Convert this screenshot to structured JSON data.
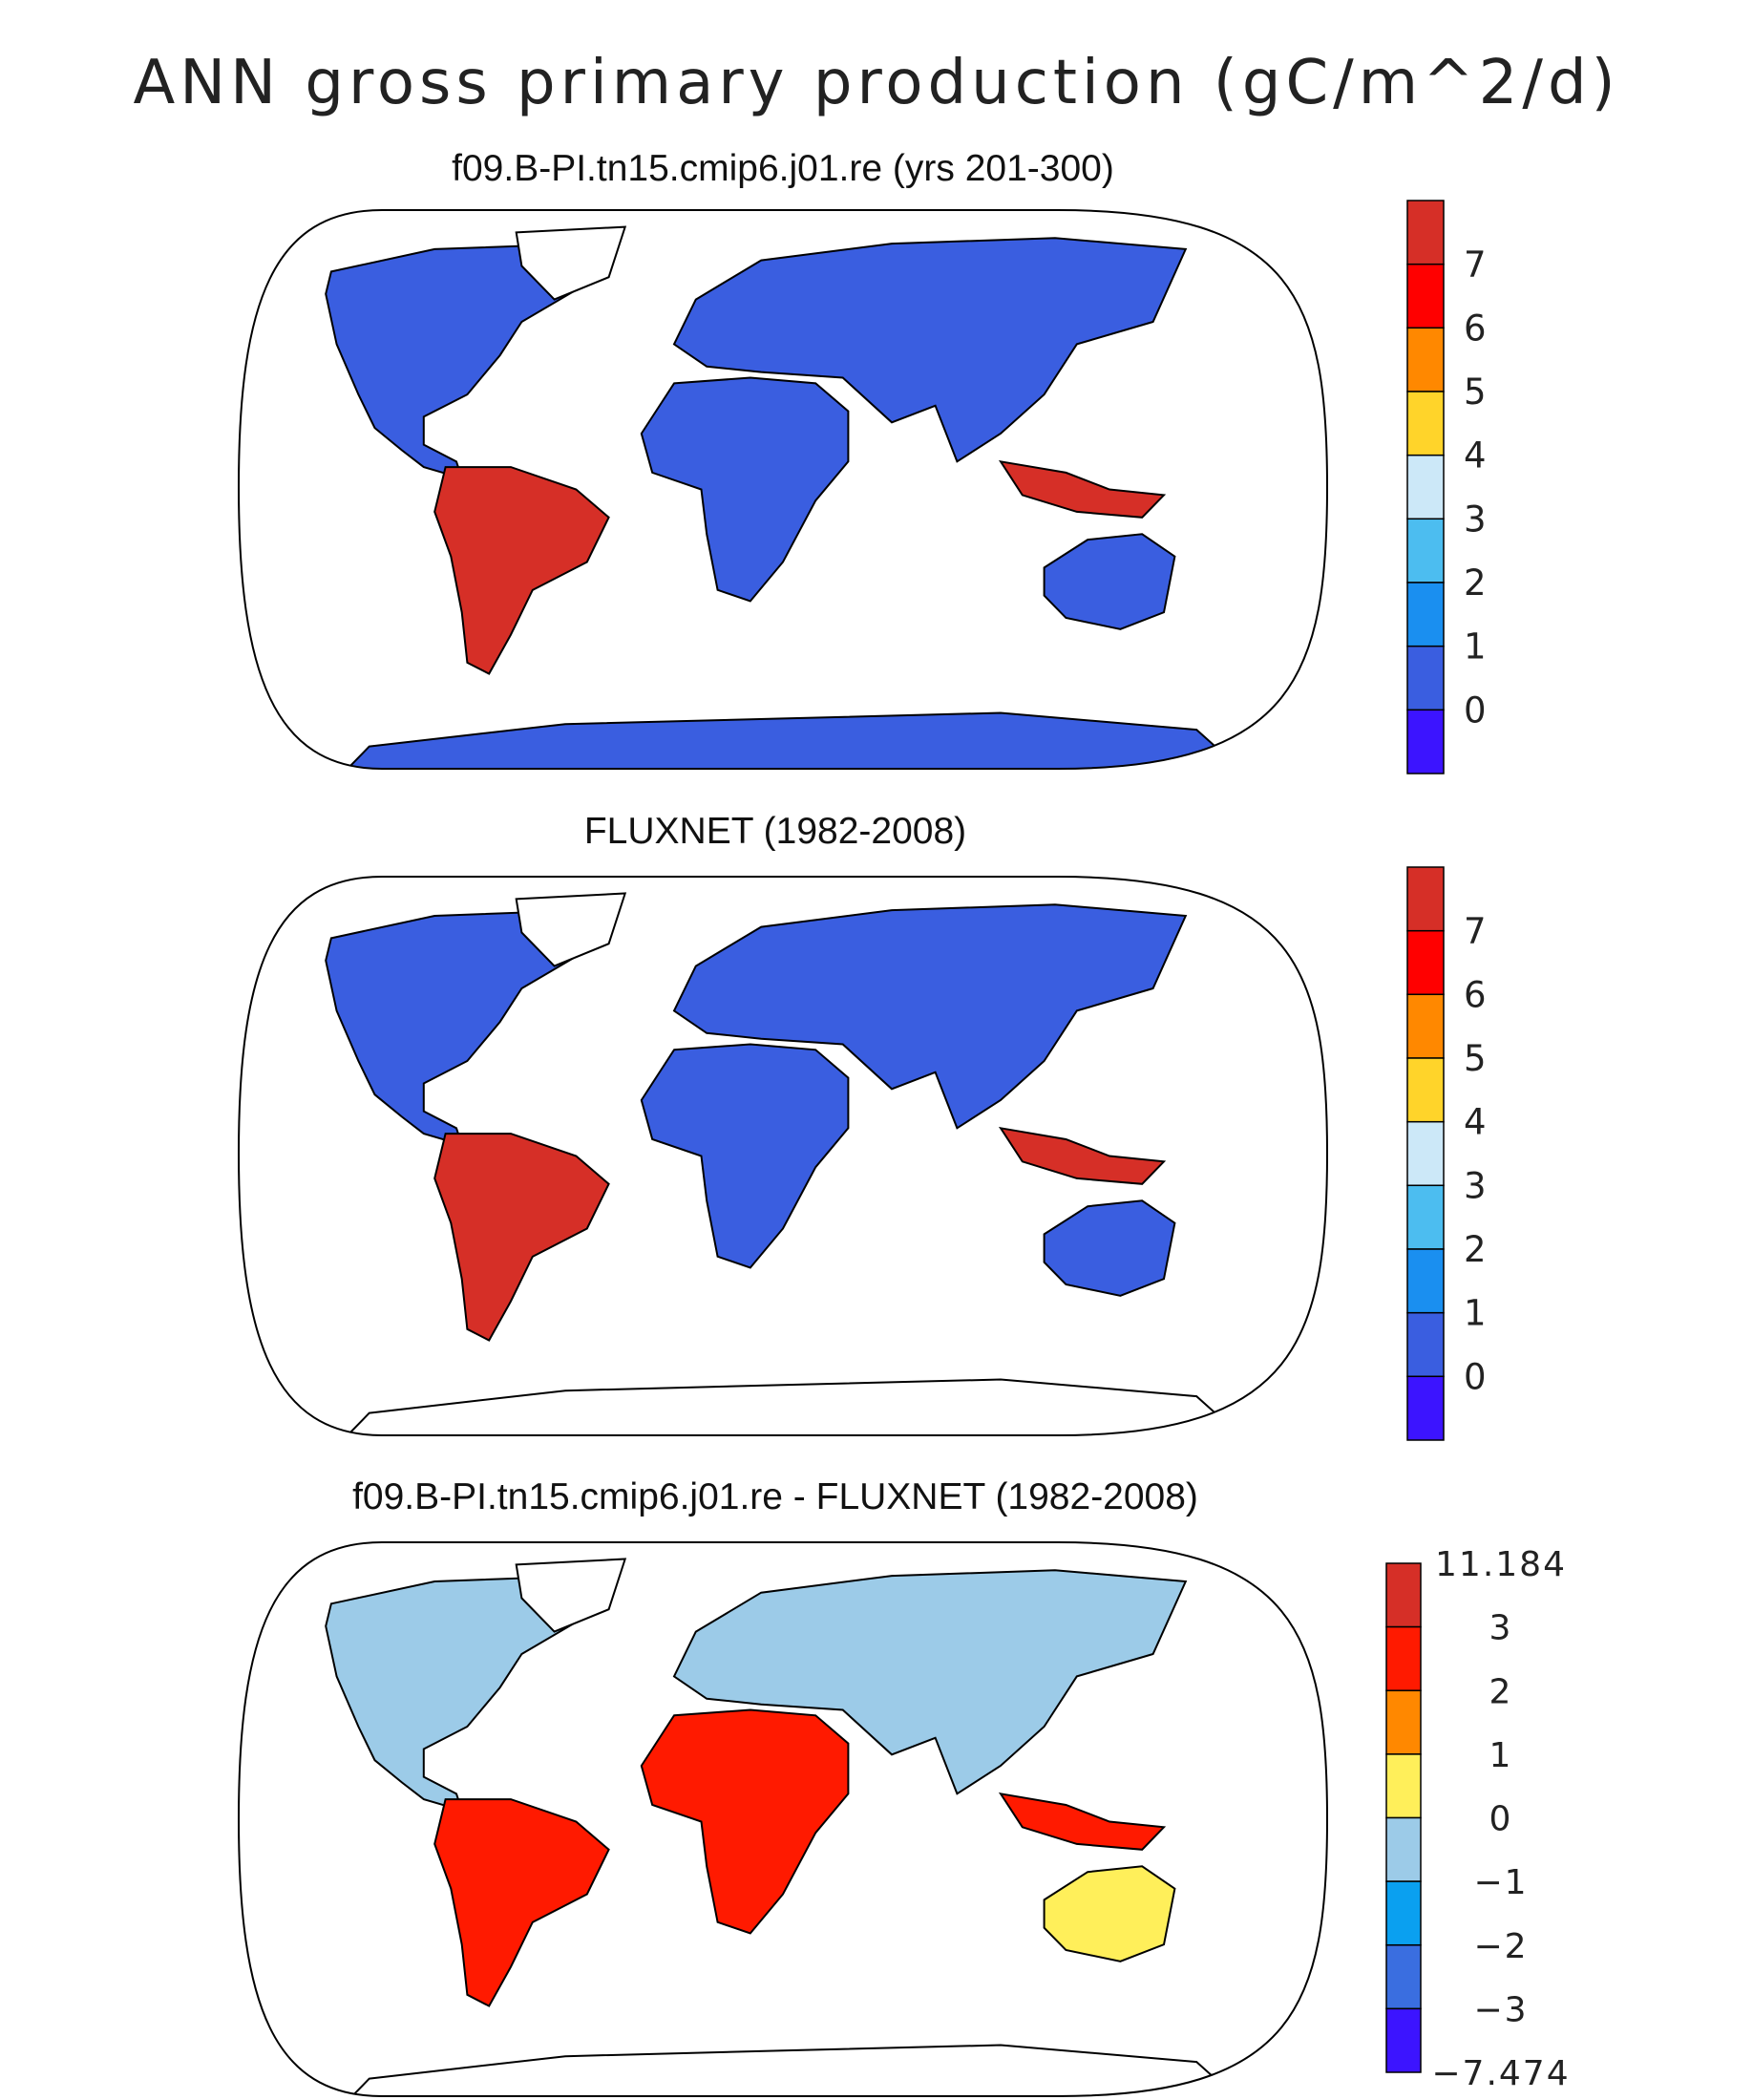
{
  "figure": {
    "title": "ANN gross primary production (gC/m^2/d)"
  },
  "panels": [
    {
      "id": "model",
      "title": "f09.B-PI.tn15.cmip6.j01.re (yrs 201-300)",
      "antarctica_filled": true,
      "colorbar": {
        "labels": [
          "7",
          "6",
          "5",
          "4",
          "3",
          "2",
          "1",
          "0"
        ],
        "colors": [
          "#d62f27",
          "#ff0000",
          "#ff8800",
          "#ffd42a",
          "#cce8f8",
          "#4cbdf0",
          "#1a8ff0",
          "#3a5ee0",
          "#3c14ff"
        ]
      },
      "regions": [
        {
          "name": "north-america",
          "colors": [
            "#3a5ee0",
            "#1a8ff0",
            "#4cbdf0",
            "#ff8800",
            "#ffd42a"
          ]
        },
        {
          "name": "south-america",
          "colors": [
            "#d62f27",
            "#ff0000",
            "#ff8800",
            "#ffd42a",
            "#4cbdf0"
          ]
        },
        {
          "name": "africa",
          "colors": [
            "#3a5ee0",
            "#d62f27",
            "#ff0000",
            "#ffd42a",
            "#1a8ff0"
          ]
        },
        {
          "name": "eurasia",
          "colors": [
            "#3a5ee0",
            "#1a8ff0",
            "#4cbdf0",
            "#ff0000",
            "#ff8800"
          ]
        },
        {
          "name": "southeast-asia",
          "colors": [
            "#d62f27",
            "#ff0000",
            "#ff8800"
          ]
        },
        {
          "name": "australia",
          "colors": [
            "#3a5ee0",
            "#1a8ff0",
            "#ff8800"
          ]
        },
        {
          "name": "antarctica",
          "colors": [
            "#3a5ee0"
          ]
        }
      ]
    },
    {
      "id": "obs",
      "title": "FLUXNET (1982-2008)",
      "antarctica_filled": false,
      "colorbar": {
        "labels": [
          "7",
          "6",
          "5",
          "4",
          "3",
          "2",
          "1",
          "0"
        ],
        "colors": [
          "#d62f27",
          "#ff0000",
          "#ff8800",
          "#ffd42a",
          "#cce8f8",
          "#4cbdf0",
          "#1a8ff0",
          "#3a5ee0",
          "#3c14ff"
        ]
      },
      "regions": [
        {
          "name": "north-america",
          "colors": [
            "#3a5ee0",
            "#1a8ff0",
            "#4cbdf0",
            "#ffd42a"
          ]
        },
        {
          "name": "south-america",
          "colors": [
            "#d62f27",
            "#ff0000",
            "#ff8800",
            "#ffd42a",
            "#4cbdf0"
          ]
        },
        {
          "name": "africa",
          "colors": [
            "#3a5ee0",
            "#d62f27",
            "#ff8800",
            "#ffd42a",
            "#1a8ff0"
          ]
        },
        {
          "name": "eurasia",
          "colors": [
            "#3a5ee0",
            "#1a8ff0",
            "#4cbdf0",
            "#ff8800"
          ]
        },
        {
          "name": "southeast-asia",
          "colors": [
            "#d62f27",
            "#ff0000"
          ]
        },
        {
          "name": "australia",
          "colors": [
            "#3a5ee0",
            "#1a8ff0"
          ]
        }
      ]
    },
    {
      "id": "diff",
      "title": "f09.B-PI.tn15.cmip6.j01.re - FLUXNET (1982-2008)",
      "antarctica_filled": false,
      "colorbar": {
        "labels": [
          "11.184",
          "3",
          "2",
          "1",
          "0",
          "−1",
          "−2",
          "−3",
          "−7.474"
        ],
        "colors": [
          "#d62f27",
          "#ff1a00",
          "#ff8800",
          "#ffef5a",
          "#9ccbe8",
          "#0aa0f0",
          "#3a6ee0",
          "#3c14ff"
        ]
      },
      "regions": [
        {
          "name": "north-america",
          "colors": [
            "#9ccbe8",
            "#ffef5a",
            "#ff8800",
            "#ff1a00"
          ]
        },
        {
          "name": "south-america",
          "colors": [
            "#ff1a00",
            "#3c14ff",
            "#ffef5a",
            "#ff8800",
            "#9ccbe8"
          ]
        },
        {
          "name": "africa",
          "colors": [
            "#ff1a00",
            "#d62f27",
            "#ffef5a",
            "#9ccbe8"
          ]
        },
        {
          "name": "eurasia",
          "colors": [
            "#9ccbe8",
            "#0aa0f0",
            "#ffef5a",
            "#ff8800",
            "#ff1a00"
          ]
        },
        {
          "name": "southeast-asia",
          "colors": [
            "#ff1a00",
            "#ff8800"
          ]
        },
        {
          "name": "australia",
          "colors": [
            "#ffef5a",
            "#ff8800"
          ]
        }
      ]
    }
  ]
}
